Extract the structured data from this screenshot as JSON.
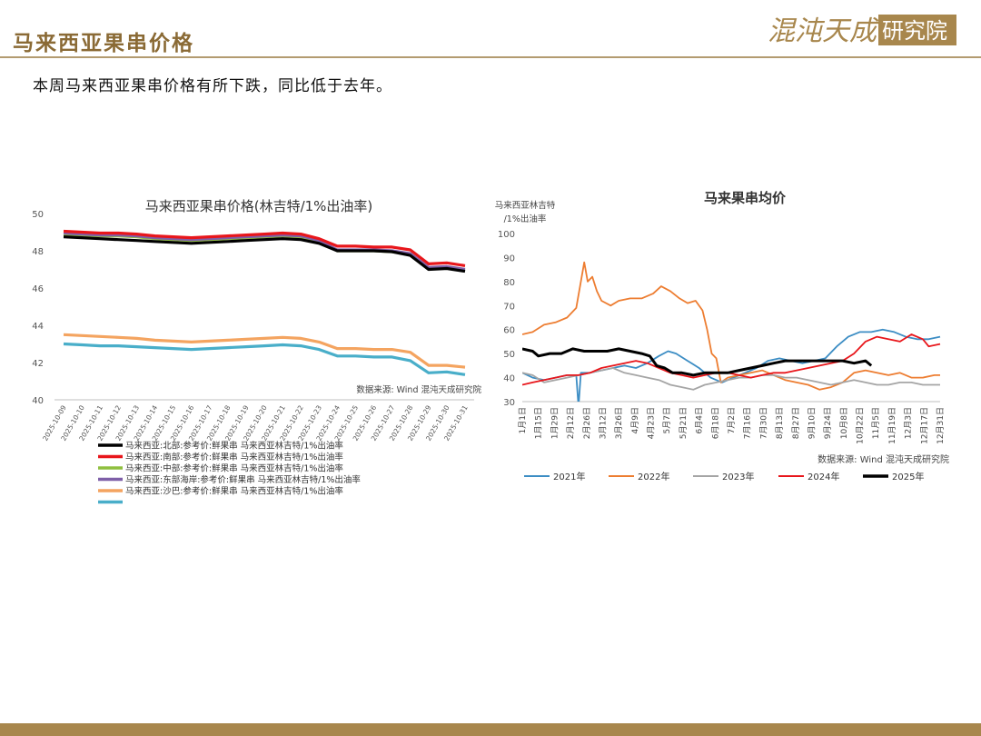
{
  "header": {
    "title": "马来西亚果串价格",
    "summary": "本周马来西亚果串价格有所下跌，同比低于去年。",
    "logo_text": "混沌天成研究院"
  },
  "colors": {
    "brand": "#8a6a35",
    "rule": "#b39b70",
    "bar": "#a8874d"
  },
  "chart_data": [
    {
      "type": "line",
      "title": "马来西亚果串价格(林吉特/1%出油率)",
      "source": "数据来源: Wind 混沌天成研究院",
      "ylim": [
        40,
        50
      ],
      "yticks": [
        40,
        42,
        44,
        46,
        48,
        50
      ],
      "grid": false,
      "legend_position": "bottom-left",
      "categories": [
        "2025-10-09",
        "2025-10-10",
        "2025-10-11",
        "2025-10-12",
        "2025-10-13",
        "2025-10-14",
        "2025-10-15",
        "2025-10-16",
        "2025-10-17",
        "2025-10-18",
        "2025-10-19",
        "2025-10-20",
        "2025-10-21",
        "2025-10-22",
        "2025-10-23",
        "2025-10-24",
        "2025-10-25",
        "2025-10-26",
        "2025-10-27",
        "2025-10-28",
        "2025-10-29",
        "2025-10-30",
        "2025-10-31"
      ],
      "series": [
        {
          "name": "马来西亚:北部:参考价:鲜果串 马来西亚林吉特/1%出油率",
          "color": "#000000",
          "values": [
            48.75,
            48.7,
            48.65,
            48.6,
            48.55,
            48.5,
            48.45,
            48.4,
            48.45,
            48.5,
            48.55,
            48.6,
            48.65,
            48.6,
            48.4,
            48.0,
            48.0,
            48.0,
            47.95,
            47.75,
            47.0,
            47.05,
            46.9
          ]
        },
        {
          "name": "马来西亚:南部:参考价:鲜果串 马来西亚林吉特/1%出油率",
          "color": "#e8161b",
          "values": [
            49.05,
            49.0,
            48.95,
            48.95,
            48.9,
            48.8,
            48.75,
            48.7,
            48.75,
            48.8,
            48.85,
            48.9,
            48.95,
            48.9,
            48.65,
            48.25,
            48.25,
            48.2,
            48.2,
            48.05,
            47.3,
            47.35,
            47.2
          ]
        },
        {
          "name": "马来西亚:中部:参考价:鲜果串 马来西亚林吉特/1%出油率",
          "color": "#8fbf3f",
          "values": [
            48.9,
            48.85,
            48.8,
            48.8,
            48.75,
            48.65,
            48.6,
            48.55,
            48.6,
            48.65,
            48.7,
            48.75,
            48.8,
            48.75,
            48.5,
            48.0,
            48.0,
            48.0,
            47.95,
            47.8,
            47.05,
            47.1,
            46.95
          ]
        },
        {
          "name": "马来西亚:东部海岸:参考价:鲜果串 马来西亚林吉特/1%出油率",
          "color": "#7e5fa8",
          "values": [
            48.95,
            48.9,
            48.85,
            48.85,
            48.8,
            48.7,
            48.65,
            48.6,
            48.65,
            48.7,
            48.75,
            48.8,
            48.85,
            48.8,
            48.55,
            48.05,
            48.05,
            48.05,
            48.0,
            47.85,
            47.1,
            47.15,
            47.0
          ]
        },
        {
          "name": "马来西亚:沙巴:参考价:鲜果串 马来西亚林吉特/1%出油率",
          "color": "#f4a460",
          "values": [
            43.5,
            43.45,
            43.4,
            43.35,
            43.3,
            43.2,
            43.15,
            43.1,
            43.15,
            43.2,
            43.25,
            43.3,
            43.35,
            43.3,
            43.1,
            42.75,
            42.75,
            42.7,
            42.7,
            42.55,
            41.85,
            41.85,
            41.75
          ]
        },
        {
          "name": "",
          "color": "#49aec9",
          "values": [
            43.0,
            42.95,
            42.9,
            42.9,
            42.85,
            42.8,
            42.75,
            42.7,
            42.75,
            42.8,
            42.85,
            42.9,
            42.95,
            42.9,
            42.7,
            42.35,
            42.35,
            42.3,
            42.3,
            42.1,
            41.45,
            41.5,
            41.35
          ]
        }
      ]
    },
    {
      "type": "line",
      "title": "马来果串均价",
      "ylabel": "马来西亚林吉特\n/1%出油率",
      "source": "数据来源: Wind 混沌天成研究院",
      "ylim": [
        30,
        100
      ],
      "yticks": [
        30,
        40,
        50,
        60,
        70,
        80,
        90,
        100
      ],
      "grid": false,
      "legend_position": "bottom",
      "x_ticks": [
        "1月1日",
        "1月15日",
        "1月29日",
        "2月12日",
        "2月26日",
        "3月12日",
        "3月26日",
        "4月9日",
        "4月23日",
        "5月7日",
        "5月21日",
        "6月4日",
        "6月18日",
        "7月2日",
        "7月16日",
        "7月30日",
        "8月13日",
        "8月27日",
        "9月10日",
        "9月24日",
        "10月8日",
        "10月22日",
        "11月5日",
        "11月19日",
        "12月3日",
        "12月17日",
        "12月31日"
      ],
      "x_unit": "day_of_year",
      "x_range": [
        1,
        365
      ],
      "series": [
        {
          "name": "2021年",
          "color": "#3c8dc4",
          "points": [
            [
              1,
              42
            ],
            [
              10,
              40
            ],
            [
              20,
              39
            ],
            [
              30,
              40
            ],
            [
              40,
              41
            ],
            [
              48,
              41
            ],
            [
              50,
              28
            ],
            [
              52,
              42
            ],
            [
              60,
              42
            ],
            [
              70,
              43
            ],
            [
              80,
              44
            ],
            [
              90,
              45
            ],
            [
              100,
              44
            ],
            [
              110,
              46
            ],
            [
              120,
              49
            ],
            [
              128,
              51
            ],
            [
              135,
              50
            ],
            [
              145,
              47
            ],
            [
              155,
              44
            ],
            [
              165,
              40
            ],
            [
              175,
              38
            ],
            [
              185,
              40
            ],
            [
              195,
              42
            ],
            [
              205,
              44
            ],
            [
              215,
              47
            ],
            [
              225,
              48
            ],
            [
              235,
              47
            ],
            [
              245,
              46
            ],
            [
              255,
              47
            ],
            [
              265,
              48
            ],
            [
              275,
              53
            ],
            [
              285,
              57
            ],
            [
              295,
              59
            ],
            [
              305,
              59
            ],
            [
              315,
              60
            ],
            [
              325,
              59
            ],
            [
              335,
              57
            ],
            [
              345,
              56
            ],
            [
              355,
              56
            ],
            [
              365,
              57
            ]
          ]
        },
        {
          "name": "2022年",
          "color": "#ed7d31",
          "points": [
            [
              1,
              58
            ],
            [
              10,
              59
            ],
            [
              20,
              62
            ],
            [
              30,
              63
            ],
            [
              40,
              65
            ],
            [
              48,
              69
            ],
            [
              52,
              80
            ],
            [
              55,
              88
            ],
            [
              58,
              80
            ],
            [
              62,
              82
            ],
            [
              66,
              76
            ],
            [
              70,
              72
            ],
            [
              78,
              70
            ],
            [
              85,
              72
            ],
            [
              95,
              73
            ],
            [
              105,
              73
            ],
            [
              115,
              75
            ],
            [
              122,
              78
            ],
            [
              130,
              76
            ],
            [
              138,
              73
            ],
            [
              145,
              71
            ],
            [
              152,
              72
            ],
            [
              158,
              68
            ],
            [
              162,
              60
            ],
            [
              166,
              50
            ],
            [
              170,
              48
            ],
            [
              174,
              38
            ],
            [
              180,
              40
            ],
            [
              190,
              41
            ],
            [
              200,
              42
            ],
            [
              210,
              43
            ],
            [
              220,
              41
            ],
            [
              230,
              39
            ],
            [
              240,
              38
            ],
            [
              250,
              37
            ],
            [
              260,
              35
            ],
            [
              270,
              36
            ],
            [
              280,
              38
            ],
            [
              290,
              42
            ],
            [
              300,
              43
            ],
            [
              310,
              42
            ],
            [
              320,
              41
            ],
            [
              330,
              42
            ],
            [
              340,
              40
            ],
            [
              350,
              40
            ],
            [
              360,
              41
            ],
            [
              365,
              41
            ]
          ]
        },
        {
          "name": "2023年",
          "color": "#a5a5a5",
          "points": [
            [
              1,
              42
            ],
            [
              10,
              41
            ],
            [
              20,
              38
            ],
            [
              30,
              39
            ],
            [
              40,
              40
            ],
            [
              50,
              41
            ],
            [
              60,
              42
            ],
            [
              70,
              43
            ],
            [
              80,
              44
            ],
            [
              90,
              42
            ],
            [
              100,
              41
            ],
            [
              110,
              40
            ],
            [
              120,
              39
            ],
            [
              130,
              37
            ],
            [
              140,
              36
            ],
            [
              150,
              35
            ],
            [
              160,
              37
            ],
            [
              170,
              38
            ],
            [
              180,
              39
            ],
            [
              190,
              40
            ],
            [
              200,
              40
            ],
            [
              210,
              41
            ],
            [
              220,
              41
            ],
            [
              230,
              40
            ],
            [
              240,
              40
            ],
            [
              250,
              39
            ],
            [
              260,
              38
            ],
            [
              270,
              37
            ],
            [
              280,
              38
            ],
            [
              290,
              39
            ],
            [
              300,
              38
            ],
            [
              310,
              37
            ],
            [
              320,
              37
            ],
            [
              330,
              38
            ],
            [
              340,
              38
            ],
            [
              350,
              37
            ],
            [
              365,
              37
            ]
          ]
        },
        {
          "name": "2024年",
          "color": "#e8161b",
          "points": [
            [
              1,
              37
            ],
            [
              10,
              38
            ],
            [
              20,
              39
            ],
            [
              30,
              40
            ],
            [
              40,
              41
            ],
            [
              50,
              41
            ],
            [
              60,
              42
            ],
            [
              70,
              44
            ],
            [
              80,
              45
            ],
            [
              90,
              46
            ],
            [
              100,
              47
            ],
            [
              110,
              46
            ],
            [
              120,
              44
            ],
            [
              130,
              42
            ],
            [
              140,
              41
            ],
            [
              150,
              40
            ],
            [
              160,
              41
            ],
            [
              170,
              42
            ],
            [
              180,
              42
            ],
            [
              190,
              41
            ],
            [
              200,
              40
            ],
            [
              210,
              41
            ],
            [
              220,
              42
            ],
            [
              230,
              42
            ],
            [
              240,
              43
            ],
            [
              250,
              44
            ],
            [
              260,
              45
            ],
            [
              270,
              46
            ],
            [
              280,
              47
            ],
            [
              290,
              50
            ],
            [
              300,
              55
            ],
            [
              310,
              57
            ],
            [
              320,
              56
            ],
            [
              330,
              55
            ],
            [
              340,
              58
            ],
            [
              350,
              56
            ],
            [
              355,
              53
            ],
            [
              365,
              54
            ]
          ]
        },
        {
          "name": "2025年",
          "color": "#000000",
          "points": [
            [
              1,
              52
            ],
            [
              10,
              51
            ],
            [
              15,
              49
            ],
            [
              25,
              50
            ],
            [
              35,
              50
            ],
            [
              45,
              52
            ],
            [
              55,
              51
            ],
            [
              65,
              51
            ],
            [
              75,
              51
            ],
            [
              85,
              52
            ],
            [
              95,
              51
            ],
            [
              105,
              50
            ],
            [
              112,
              49
            ],
            [
              118,
              45
            ],
            [
              125,
              44
            ],
            [
              132,
              42
            ],
            [
              140,
              42
            ],
            [
              150,
              41
            ],
            [
              160,
              42
            ],
            [
              170,
              42
            ],
            [
              180,
              42
            ],
            [
              190,
              43
            ],
            [
              200,
              44
            ],
            [
              210,
              45
            ],
            [
              220,
              46
            ],
            [
              230,
              47
            ],
            [
              240,
              47
            ],
            [
              250,
              47
            ],
            [
              260,
              47
            ],
            [
              270,
              47
            ],
            [
              280,
              47
            ],
            [
              290,
              46
            ],
            [
              300,
              47
            ],
            [
              305,
              45
            ]
          ]
        }
      ]
    }
  ]
}
